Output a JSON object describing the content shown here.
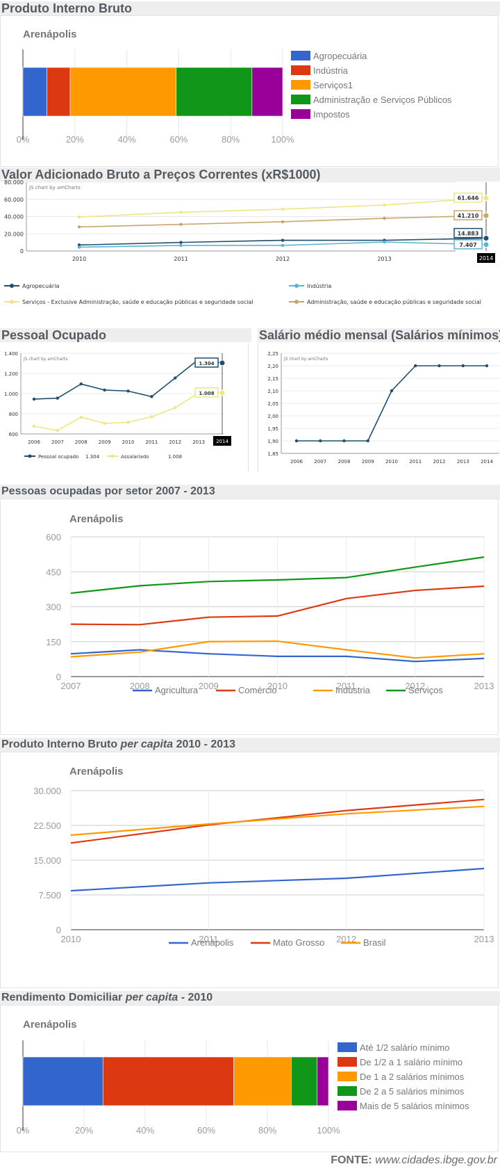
{
  "footer": {
    "label": "FONTE:",
    "url": "www.cidades.ibge.gov.br"
  },
  "sections": {
    "pib": {
      "title": "Produto Interno Bruto"
    },
    "vab": {
      "title": "Valor Adicionado Bruto a Preços Correntes (xR$1000)"
    },
    "pessoal": {
      "title": "Pessoal Ocupado"
    },
    "salario": {
      "title": "Salário médio mensal (Salários mínimos)"
    },
    "setor": {
      "title": "Pessoas ocupadas por setor 2007 - 2013"
    },
    "pibpc": {
      "title_main": "Produto Interno Bruto",
      "title_italic": "per capita",
      "title_rest": "2010 - 2013"
    },
    "rend": {
      "title_main": "Rendimento Domiciliar",
      "title_italic": "per capita",
      "title_rest": "- 2010"
    }
  },
  "colors": {
    "blue": "#3366cc",
    "red": "#dc3912",
    "orange": "#ff9900",
    "green": "#109618",
    "purple": "#990099",
    "am_dark": "#1f4e6e",
    "am_light": "#5ab4d2",
    "am_yellow": "#ede683",
    "am_tan": "#c8a56a"
  },
  "chart_data": [
    {
      "id": "pib",
      "type": "bar",
      "stacked": "percent",
      "title": "Arenápolis",
      "categories": [
        "Agropecuária",
        "Indústria",
        "Serviços1",
        "Administração e Serviços Públicos",
        "Impostos"
      ],
      "values": [
        9.2,
        9.0,
        40.8,
        29.2,
        11.8
      ],
      "colors": [
        "#3366cc",
        "#dc3912",
        "#ff9900",
        "#109618",
        "#990099"
      ],
      "xticks": [
        "0%",
        "20%",
        "40%",
        "60%",
        "80%",
        "100%"
      ],
      "legend": "right"
    },
    {
      "id": "vab",
      "type": "line",
      "credit": "JS chart by amCharts",
      "x": [
        "2010",
        "2011",
        "2012",
        "2013",
        "2014"
      ],
      "yticks": [
        "0",
        "20.000",
        "40.000",
        "60.000",
        "80.000"
      ],
      "ylim": [
        0,
        80000
      ],
      "series": [
        {
          "name": "Agropecuária",
          "values": [
            7000,
            10000,
            12500,
            12500,
            14883
          ],
          "color": "#1f4e6e",
          "label": "14.883"
        },
        {
          "name": "Indústria",
          "values": [
            4500,
            6500,
            6500,
            10500,
            7407
          ],
          "color": "#5ab4d2",
          "label": "7.407"
        },
        {
          "name": "Serviços - Exclusive Administração, saúde e educação públicas e seguridade social",
          "values": [
            39500,
            45000,
            48500,
            53500,
            61646
          ],
          "color": "#ede683",
          "label": "61.646"
        },
        {
          "name": "Administração, saúde e educação públicas e seguridade social",
          "values": [
            28000,
            31000,
            34000,
            38000,
            41210
          ],
          "color": "#c8a56a",
          "label": "41.210"
        }
      ],
      "cursor_label": "2014"
    },
    {
      "id": "pessoal",
      "type": "line",
      "credit": "JS chart by amCharts",
      "x": [
        "2006",
        "2007",
        "2008",
        "2009",
        "2010",
        "2011",
        "2012",
        "2013",
        "2014"
      ],
      "yticks": [
        "600",
        "800",
        "1.000",
        "1.200",
        "1.400"
      ],
      "ylim": [
        600,
        1400
      ],
      "series": [
        {
          "name": "Pessoal ocupado",
          "values": [
            945,
            955,
            1095,
            1035,
            1025,
            970,
            1155,
            1340,
            1304
          ],
          "color": "#1f4e6e",
          "label": "1.304",
          "legend_value": "1.304"
        },
        {
          "name": "Assalariado",
          "values": [
            675,
            635,
            765,
            705,
            715,
            770,
            860,
            1005,
            1008
          ],
          "color": "#ede683",
          "label": "1.008",
          "legend_value": "1.008"
        }
      ],
      "cursor_label": "2014"
    },
    {
      "id": "salario",
      "type": "line",
      "credit": "JS chart by amCharts",
      "x": [
        "2006",
        "2007",
        "2008",
        "2009",
        "2010",
        "2011",
        "2012",
        "2013",
        "2014"
      ],
      "yticks": [
        "1,85",
        "1,90",
        "1,95",
        "2,00",
        "2,05",
        "2,10",
        "2,15",
        "2,20",
        "2,25"
      ],
      "ylim": [
        1.85,
        2.25
      ],
      "series": [
        {
          "values": [
            1.9,
            1.9,
            1.9,
            1.9,
            2.1,
            2.2,
            2.2,
            2.2,
            2.2
          ],
          "color": "#1f4e6e"
        }
      ]
    },
    {
      "id": "setor",
      "type": "line",
      "title": "Arenápolis",
      "x": [
        "2007",
        "2008",
        "2009",
        "2010",
        "2011",
        "2012",
        "2013"
      ],
      "yticks": [
        "0",
        "150",
        "300",
        "450",
        "600"
      ],
      "ylim": [
        0,
        600
      ],
      "series": [
        {
          "name": "Agricultura",
          "values": [
            98,
            115,
            98,
            87,
            87,
            65,
            78
          ],
          "color": "#3366cc"
        },
        {
          "name": "Comércio",
          "values": [
            225,
            223,
            255,
            260,
            335,
            370,
            388
          ],
          "color": "#dc3912"
        },
        {
          "name": "Indústria",
          "values": [
            85,
            105,
            150,
            152,
            115,
            80,
            98
          ],
          "color": "#ff9900"
        },
        {
          "name": "Serviços",
          "values": [
            358,
            390,
            408,
            415,
            425,
            470,
            513
          ],
          "color": "#109618"
        }
      ],
      "legend": "bottom"
    },
    {
      "id": "pibpc",
      "type": "line",
      "title": "Arenápolis",
      "x": [
        "2010",
        "2011",
        "2012",
        "2013"
      ],
      "yticks": [
        "0",
        "7.500",
        "15.000",
        "22.500",
        "30.000"
      ],
      "ylim": [
        0,
        30000
      ],
      "series": [
        {
          "name": "Arenápolis",
          "values": [
            8400,
            10100,
            11100,
            13200
          ],
          "color": "#3366cc"
        },
        {
          "name": "Mato Grosso",
          "values": [
            18700,
            22600,
            25700,
            28100
          ],
          "color": "#dc3912"
        },
        {
          "name": "Brasil",
          "values": [
            20400,
            22800,
            25000,
            26600
          ],
          "color": "#ff9900"
        }
      ],
      "legend": "bottom"
    },
    {
      "id": "rend",
      "type": "bar",
      "stacked": "percent",
      "title": "Arenápolis",
      "categories": [
        "Até 1/2 salário mínimo",
        "De 1/2 a 1 salário mínimo",
        "De 1 a 2 salários mínimos",
        "De 2 a 5 salários mínimos",
        "Mais de 5 salários mínimos"
      ],
      "values": [
        26.2,
        42.8,
        18.8,
        8.5,
        3.7
      ],
      "colors": [
        "#3366cc",
        "#dc3912",
        "#ff9900",
        "#109618",
        "#990099"
      ],
      "xticks": [
        "0%",
        "20%",
        "40%",
        "60%",
        "80%",
        "100%"
      ],
      "legend": "right"
    }
  ]
}
